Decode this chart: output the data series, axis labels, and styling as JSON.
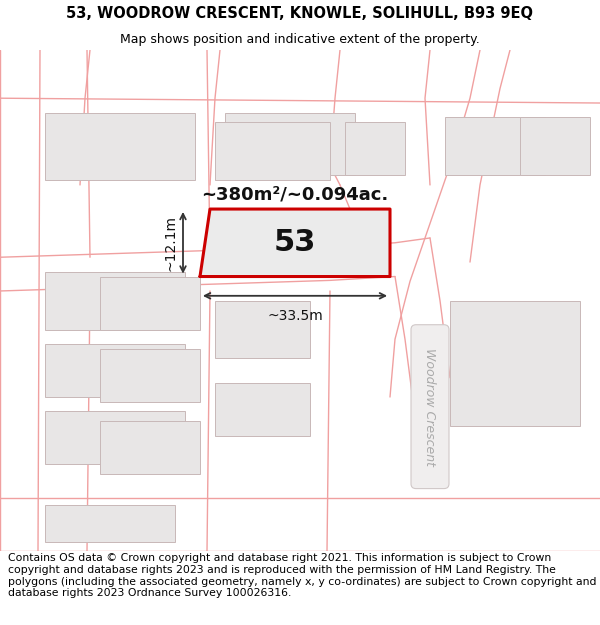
{
  "title_line1": "53, WOODROW CRESCENT, KNOWLE, SOLIHULL, B93 9EQ",
  "title_line2": "Map shows position and indicative extent of the property.",
  "footer_text": "Contains OS data © Crown copyright and database right 2021. This information is subject to Crown copyright and database rights 2023 and is reproduced with the permission of HM Land Registry. The polygons (including the associated geometry, namely x, y co-ordinates) are subject to Crown copyright and database rights 2023 Ordnance Survey 100026316.",
  "road_label": "Woodrow Crescent",
  "area_label": "~380m²/~0.094ac.",
  "plot_number": "53",
  "dim_width": "~33.5m",
  "dim_height": "~12.1m",
  "map_bg": "#f7f6f6",
  "road_line_color": "#f0a0a0",
  "bld_fill": "#e8e6e6",
  "bld_edge": "#c8b8b8",
  "plot_fill": "#ebebeb",
  "plot_edge": "#cc0000",
  "road_pill_color": "#e8e0e0",
  "road_text_color": "#aaaaaa",
  "title_fontsize": 10.5,
  "subtitle_fontsize": 9.0,
  "footer_fontsize": 7.8
}
